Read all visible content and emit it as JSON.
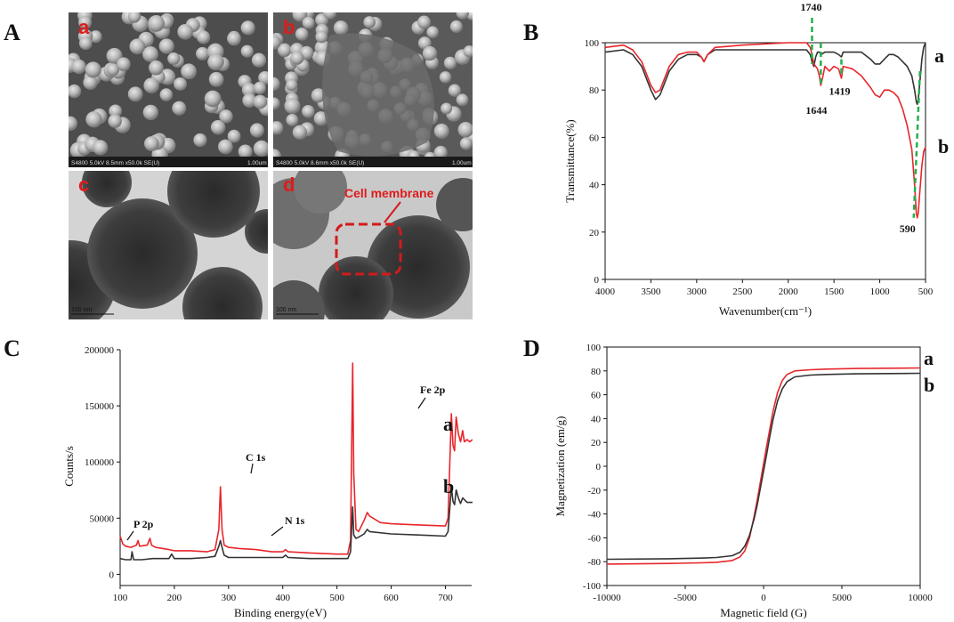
{
  "panels": {
    "A": {
      "letter": "A",
      "sub": [
        {
          "letter": "a",
          "caption": "S4800 5.0kV 8.5mm x50.0k SE(U)",
          "scale": "1.00um"
        },
        {
          "letter": "b",
          "caption": "S4800 5.0kV 8.6mm x50.0k SE(U)",
          "scale": "1.00um"
        },
        {
          "letter": "c",
          "scale": "100 nm"
        },
        {
          "letter": "d",
          "scale": "100 nm",
          "annotation": "Cell membrane"
        }
      ]
    }
  },
  "chart_data": [
    {
      "panel": "B",
      "type": "line",
      "xlabel": "Wavenumber(cm⁻¹)",
      "ylabel": "Transmittance(%)",
      "xlim": [
        4000,
        500
      ],
      "ylim": [
        0,
        100
      ],
      "xticks": [
        4000,
        3500,
        3000,
        2500,
        2000,
        1500,
        1000,
        500
      ],
      "yticks": [
        0,
        20,
        40,
        60,
        80,
        100
      ],
      "series": [
        {
          "name": "a",
          "color": "#333333",
          "x": [
            4000,
            3800,
            3700,
            3600,
            3500,
            3450,
            3400,
            3300,
            3200,
            3100,
            3000,
            2950,
            2920,
            2880,
            2800,
            2500,
            2000,
            1800,
            1760,
            1740,
            1720,
            1700,
            1680,
            1660,
            1640,
            1600,
            1500,
            1450,
            1419,
            1400,
            1300,
            1200,
            1100,
            1050,
            1000,
            950,
            900,
            850,
            800,
            750,
            700,
            650,
            620,
            600,
            590,
            580,
            560,
            540,
            520,
            500
          ],
          "y": [
            96,
            97,
            95,
            90,
            80,
            76,
            78,
            88,
            93,
            95,
            95,
            94,
            92,
            95,
            97,
            97,
            97,
            97,
            95,
            92,
            90,
            94,
            96,
            96,
            95,
            96,
            96,
            95,
            94,
            96,
            96,
            96,
            93,
            91,
            91,
            93,
            95,
            95,
            94,
            92,
            90,
            86,
            80,
            75,
            74,
            76,
            84,
            93,
            98,
            100
          ]
        },
        {
          "name": "b",
          "color": "#e8262b",
          "x": [
            4000,
            3800,
            3700,
            3600,
            3500,
            3450,
            3400,
            3300,
            3200,
            3100,
            3000,
            2950,
            2920,
            2880,
            2800,
            2500,
            2000,
            1800,
            1760,
            1740,
            1720,
            1700,
            1680,
            1660,
            1644,
            1620,
            1600,
            1550,
            1500,
            1450,
            1419,
            1400,
            1300,
            1200,
            1100,
            1050,
            1000,
            950,
            900,
            850,
            800,
            750,
            700,
            650,
            620,
            600,
            590,
            580,
            560,
            540,
            520,
            500
          ],
          "y": [
            98,
            99,
            97,
            92,
            82,
            79,
            80,
            90,
            95,
            96,
            96,
            94,
            92,
            95,
            98,
            99,
            100,
            100,
            98,
            95,
            91,
            90,
            89,
            86,
            82,
            86,
            90,
            88,
            90,
            89,
            85,
            90,
            89,
            86,
            81,
            78,
            77,
            80,
            80,
            79,
            77,
            72,
            65,
            55,
            40,
            28,
            26,
            28,
            38,
            48,
            54,
            56
          ]
        }
      ],
      "annotations": [
        {
          "label": "1740",
          "x": 1740
        },
        {
          "label": "1644",
          "x": 1644
        },
        {
          "label": "1419",
          "x": 1419
        },
        {
          "label": "590",
          "x": 590
        }
      ]
    },
    {
      "panel": "C",
      "type": "line",
      "xlabel": "Binding energy(eV)",
      "ylabel": "Counts/s",
      "xlim": [
        100,
        760
      ],
      "ylim": [
        -10000,
        200000
      ],
      "xticks": [
        100,
        200,
        300,
        400,
        500,
        600,
        700
      ],
      "yticks": [
        0,
        50000,
        100000,
        150000,
        200000
      ],
      "series": [
        {
          "name": "a",
          "color": "#e8262b",
          "x": [
            100,
            105,
            110,
            120,
            130,
            133,
            136,
            150,
            155,
            158,
            165,
            190,
            200,
            230,
            260,
            275,
            282,
            285,
            288,
            292,
            300,
            320,
            350,
            380,
            400,
            405,
            410,
            450,
            500,
            520,
            525,
            529,
            531,
            535,
            540,
            550,
            556,
            560,
            580,
            600,
            650,
            700,
            705,
            711,
            714,
            717,
            720,
            724,
            728,
            732,
            735,
            740,
            745,
            750
          ],
          "y": [
            34000,
            27000,
            25000,
            24000,
            26000,
            30000,
            25000,
            26000,
            32000,
            26000,
            24000,
            22000,
            21000,
            21000,
            20000,
            22000,
            40000,
            78000,
            40000,
            26000,
            24000,
            23000,
            22000,
            20000,
            20000,
            22000,
            20000,
            19000,
            18000,
            18000,
            30000,
            188000,
            90000,
            40000,
            38000,
            48000,
            55000,
            52000,
            46000,
            45000,
            44000,
            43000,
            50000,
            143000,
            115000,
            110000,
            140000,
            125000,
            118000,
            128000,
            118000,
            120000,
            118000,
            120000
          ]
        },
        {
          "name": "b",
          "color": "#333333",
          "x": [
            100,
            110,
            120,
            122,
            125,
            140,
            160,
            190,
            195,
            200,
            230,
            260,
            275,
            282,
            285,
            288,
            292,
            300,
            350,
            400,
            405,
            410,
            450,
            500,
            520,
            525,
            529,
            531,
            535,
            540,
            550,
            556,
            560,
            600,
            650,
            700,
            705,
            711,
            714,
            717,
            720,
            724,
            728,
            732,
            740,
            750
          ],
          "y": [
            14000,
            13000,
            13000,
            20000,
            13000,
            13000,
            14000,
            14000,
            18000,
            14000,
            14000,
            15000,
            16000,
            25000,
            30000,
            24000,
            17000,
            15000,
            15000,
            15000,
            17000,
            15000,
            14000,
            14000,
            14000,
            20000,
            60000,
            35000,
            32000,
            33000,
            36000,
            40000,
            38000,
            36000,
            35000,
            34000,
            38000,
            78000,
            65000,
            62000,
            75000,
            68000,
            63000,
            68000,
            64000,
            64000
          ]
        }
      ],
      "annotations": [
        {
          "label": "P 2p",
          "x": 130
        },
        {
          "label": "C 1s",
          "x": 285
        },
        {
          "label": "N 1s",
          "x": 400
        },
        {
          "label": "Fe 2p",
          "x": 711
        }
      ]
    },
    {
      "panel": "D",
      "type": "line",
      "xlabel": "Magnetic field (G)",
      "ylabel": "Magnetization (em/g)",
      "xlim": [
        -10000,
        10000
      ],
      "ylim": [
        -100,
        100
      ],
      "xticks": [
        -10000,
        -5000,
        0,
        5000,
        10000
      ],
      "yticks": [
        -100,
        -80,
        -60,
        -40,
        -20,
        0,
        20,
        40,
        60,
        80,
        100
      ],
      "series": [
        {
          "name": "a",
          "color": "#e8262b",
          "x": [
            -10000,
            -6000,
            -4000,
            -3000,
            -2000,
            -1500,
            -1200,
            -900,
            -600,
            -400,
            -200,
            0,
            200,
            400,
            600,
            900,
            1200,
            1500,
            2000,
            3000,
            4000,
            6000,
            10000
          ],
          "y": [
            -82,
            -81.5,
            -81,
            -80.5,
            -79,
            -76,
            -71,
            -60,
            -42,
            -28,
            -13,
            2,
            17,
            31,
            46,
            62,
            72,
            77,
            80,
            81,
            81.5,
            82,
            82.5
          ]
        },
        {
          "name": "b",
          "color": "#333333",
          "x": [
            -10000,
            -6000,
            -4000,
            -3000,
            -2000,
            -1500,
            -1200,
            -900,
            -600,
            -400,
            -200,
            0,
            200,
            400,
            600,
            900,
            1200,
            1500,
            2000,
            3000,
            4000,
            6000,
            10000
          ],
          "y": [
            -78,
            -77.5,
            -77,
            -76.5,
            -75,
            -72,
            -67,
            -58,
            -44,
            -32,
            -18,
            -4,
            10,
            25,
            39,
            55,
            65,
            71,
            75,
            76.5,
            77,
            77.5,
            78
          ]
        }
      ]
    }
  ]
}
